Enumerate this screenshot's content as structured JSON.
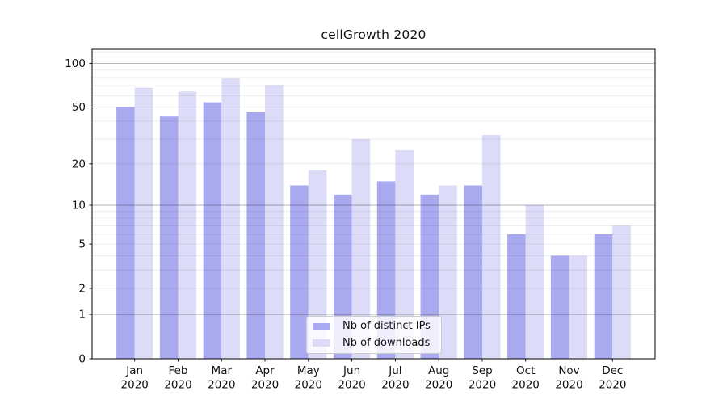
{
  "chart_data": {
    "type": "bar",
    "title": "cellGrowth 2020",
    "categories": [
      "Jan 2020",
      "Feb 2020",
      "Mar 2020",
      "Apr 2020",
      "May 2020",
      "Jun 2020",
      "Jul 2020",
      "Aug 2020",
      "Sep 2020",
      "Oct 2020",
      "Nov 2020",
      "Dec 2020"
    ],
    "series": [
      {
        "name": "Nb of distinct IPs",
        "color": "#a9a9f0",
        "values": [
          50,
          43,
          54,
          46,
          14,
          12,
          15,
          12,
          14,
          6,
          4,
          6
        ]
      },
      {
        "name": "Nb of downloads",
        "color": "#dcdcf8",
        "values": [
          68,
          64,
          79,
          71,
          18,
          30,
          25,
          14,
          32,
          10,
          4,
          7
        ]
      }
    ],
    "yscale": "log1p",
    "ylim": [
      0,
      125
    ],
    "yticks": [
      0,
      1,
      2,
      5,
      10,
      20,
      50,
      100
    ],
    "grid_major": [
      1,
      10,
      100
    ],
    "grid_minor": [
      2,
      3,
      4,
      5,
      6,
      7,
      8,
      9,
      20,
      30,
      40,
      50,
      60,
      70,
      80,
      90,
      110,
      120
    ],
    "grid": "on",
    "legend_position": "lower center",
    "colors": {
      "grid_major": "rgba(0,0,0,0.30)",
      "grid_minor": "rgba(0,0,0,0.09)",
      "spine": "#000000",
      "text": "#111111"
    }
  }
}
